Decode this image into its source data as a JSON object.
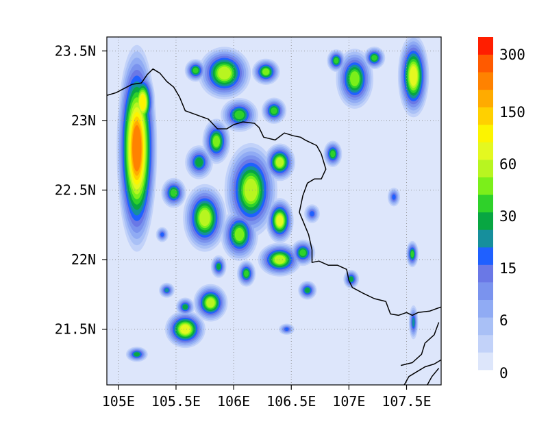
{
  "map": {
    "type": "filled-contour",
    "x_ticks": [
      "105E",
      "105.5E",
      "106E",
      "106.5E",
      "107E",
      "107.5E"
    ],
    "x_tick_values": [
      105.0,
      105.5,
      106.0,
      106.5,
      107.0,
      107.5
    ],
    "y_ticks": [
      "23.5N",
      "23N",
      "22.5N",
      "22N",
      "21.5N"
    ],
    "y_tick_values": [
      23.5,
      23.0,
      22.5,
      22.0,
      21.5
    ],
    "lon_range": [
      104.9,
      107.8
    ],
    "lat_range": [
      21.1,
      23.6
    ],
    "grid": "dotted",
    "background_color": "#dde6fb",
    "colorbar": {
      "orientation": "vertical",
      "placement": "right",
      "labels": [
        "300",
        "150",
        "60",
        "30",
        "15",
        "6",
        "0"
      ],
      "colors": [
        "#dde6fb",
        "#c2d2f9",
        "#a9c0f6",
        "#90abf4",
        "#7a93ee",
        "#6a78e6",
        "#1f60ff",
        "#168f9c",
        "#08a642",
        "#2fd12a",
        "#7bef1a",
        "#b8f520",
        "#e4f820",
        "#fcf400",
        "#ffd000",
        "#ffab00",
        "#ff8200",
        "#ff5a00",
        "#ff1e00"
      ]
    },
    "precip_cells": [
      {
        "lon": 105.16,
        "lat": 22.8,
        "rlon": 0.13,
        "rlat": 0.55,
        "peak": 16
      },
      {
        "lon": 105.21,
        "lat": 23.13,
        "rlon": 0.08,
        "rlat": 0.17,
        "peak": 13
      },
      {
        "lon": 105.92,
        "lat": 23.34,
        "rlon": 0.17,
        "rlat": 0.14,
        "peak": 11
      },
      {
        "lon": 105.67,
        "lat": 23.36,
        "rlon": 0.07,
        "rlat": 0.06,
        "peak": 9
      },
      {
        "lon": 106.28,
        "lat": 23.35,
        "rlon": 0.09,
        "rlat": 0.07,
        "peak": 10
      },
      {
        "lon": 106.35,
        "lat": 23.07,
        "rlon": 0.08,
        "rlat": 0.07,
        "peak": 9
      },
      {
        "lon": 106.05,
        "lat": 23.04,
        "rlon": 0.12,
        "rlat": 0.09,
        "peak": 9
      },
      {
        "lon": 105.85,
        "lat": 22.85,
        "rlon": 0.09,
        "rlat": 0.12,
        "peak": 10
      },
      {
        "lon": 105.7,
        "lat": 22.7,
        "rlon": 0.09,
        "rlat": 0.09,
        "peak": 8
      },
      {
        "lon": 106.4,
        "lat": 22.7,
        "rlon": 0.1,
        "rlat": 0.1,
        "peak": 11
      },
      {
        "lon": 106.15,
        "lat": 22.5,
        "rlon": 0.17,
        "rlat": 0.25,
        "peak": 11
      },
      {
        "lon": 105.48,
        "lat": 22.48,
        "rlon": 0.08,
        "rlat": 0.08,
        "peak": 9
      },
      {
        "lon": 105.75,
        "lat": 22.3,
        "rlon": 0.14,
        "rlat": 0.18,
        "peak": 11
      },
      {
        "lon": 106.05,
        "lat": 22.18,
        "rlon": 0.12,
        "rlat": 0.14,
        "peak": 10
      },
      {
        "lon": 106.4,
        "lat": 22.28,
        "rlon": 0.09,
        "rlat": 0.12,
        "peak": 12
      },
      {
        "lon": 106.4,
        "lat": 22.0,
        "rlon": 0.14,
        "rlat": 0.09,
        "peak": 11
      },
      {
        "lon": 106.6,
        "lat": 22.05,
        "rlon": 0.08,
        "rlat": 0.07,
        "peak": 9
      },
      {
        "lon": 106.11,
        "lat": 21.9,
        "rlon": 0.06,
        "rlat": 0.07,
        "peak": 9
      },
      {
        "lon": 105.87,
        "lat": 21.95,
        "rlon": 0.05,
        "rlat": 0.06,
        "peak": 8
      },
      {
        "lon": 105.8,
        "lat": 21.69,
        "rlon": 0.11,
        "rlat": 0.1,
        "peak": 11
      },
      {
        "lon": 105.58,
        "lat": 21.5,
        "rlon": 0.13,
        "rlat": 0.1,
        "peak": 12
      },
      {
        "lon": 105.58,
        "lat": 21.66,
        "rlon": 0.06,
        "rlat": 0.05,
        "peak": 8
      },
      {
        "lon": 105.16,
        "lat": 21.32,
        "rlon": 0.07,
        "rlat": 0.04,
        "peak": 8
      },
      {
        "lon": 105.42,
        "lat": 21.78,
        "rlon": 0.05,
        "rlat": 0.04,
        "peak": 7
      },
      {
        "lon": 106.64,
        "lat": 21.78,
        "rlon": 0.06,
        "rlat": 0.05,
        "peak": 8
      },
      {
        "lon": 106.89,
        "lat": 23.43,
        "rlon": 0.06,
        "rlat": 0.06,
        "peak": 9
      },
      {
        "lon": 107.05,
        "lat": 23.3,
        "rlon": 0.12,
        "rlat": 0.16,
        "peak": 10
      },
      {
        "lon": 107.22,
        "lat": 23.45,
        "rlon": 0.07,
        "rlat": 0.06,
        "peak": 9
      },
      {
        "lon": 107.56,
        "lat": 23.32,
        "rlon": 0.1,
        "rlat": 0.22,
        "peak": 12
      },
      {
        "lon": 106.86,
        "lat": 22.76,
        "rlon": 0.06,
        "rlat": 0.07,
        "peak": 9
      },
      {
        "lon": 107.55,
        "lat": 22.04,
        "rlon": 0.04,
        "rlat": 0.07,
        "peak": 9
      },
      {
        "lon": 107.02,
        "lat": 21.86,
        "rlon": 0.05,
        "rlat": 0.05,
        "peak": 8
      },
      {
        "lon": 106.46,
        "lat": 21.5,
        "rlon": 0.05,
        "rlat": 0.03,
        "peak": 6
      },
      {
        "lon": 106.68,
        "lat": 22.33,
        "rlon": 0.05,
        "rlat": 0.05,
        "peak": 6
      },
      {
        "lon": 107.39,
        "lat": 22.45,
        "rlon": 0.04,
        "rlat": 0.05,
        "peak": 6
      },
      {
        "lon": 107.56,
        "lat": 21.55,
        "rlon": 0.03,
        "rlat": 0.09,
        "peak": 7
      },
      {
        "lon": 105.38,
        "lat": 22.18,
        "rlon": 0.04,
        "rlat": 0.04,
        "peak": 6
      }
    ],
    "border_main": [
      [
        104.9,
        23.18
      ],
      [
        104.98,
        23.2
      ],
      [
        105.05,
        23.23
      ],
      [
        105.12,
        23.26
      ],
      [
        105.2,
        23.27
      ],
      [
        105.25,
        23.33
      ],
      [
        105.3,
        23.37
      ],
      [
        105.36,
        23.34
      ],
      [
        105.42,
        23.28
      ],
      [
        105.48,
        23.24
      ],
      [
        105.53,
        23.17
      ],
      [
        105.58,
        23.07
      ],
      [
        105.68,
        23.04
      ],
      [
        105.78,
        23.01
      ],
      [
        105.86,
        22.94
      ],
      [
        105.94,
        22.94
      ],
      [
        106.0,
        22.97
      ],
      [
        106.08,
        22.99
      ],
      [
        106.18,
        22.98
      ],
      [
        106.22,
        22.95
      ],
      [
        106.26,
        22.88
      ],
      [
        106.36,
        22.86
      ],
      [
        106.44,
        22.91
      ],
      [
        106.52,
        22.89
      ],
      [
        106.58,
        22.88
      ],
      [
        106.62,
        22.86
      ],
      [
        106.72,
        22.82
      ],
      [
        106.76,
        22.76
      ],
      [
        106.8,
        22.65
      ],
      [
        106.76,
        22.58
      ],
      [
        106.7,
        22.58
      ],
      [
        106.64,
        22.55
      ],
      [
        106.6,
        22.46
      ],
      [
        106.57,
        22.34
      ],
      [
        106.6,
        22.28
      ],
      [
        106.65,
        22.18
      ],
      [
        106.68,
        22.07
      ],
      [
        106.68,
        21.98
      ],
      [
        106.74,
        21.99
      ],
      [
        106.82,
        21.96
      ],
      [
        106.9,
        21.96
      ],
      [
        106.98,
        21.93
      ],
      [
        107.0,
        21.85
      ],
      [
        107.03,
        21.8
      ],
      [
        107.12,
        21.76
      ],
      [
        107.22,
        21.72
      ],
      [
        107.32,
        21.7
      ],
      [
        107.36,
        21.61
      ],
      [
        107.43,
        21.6
      ],
      [
        107.5,
        21.62
      ],
      [
        107.55,
        21.6
      ],
      [
        107.6,
        21.62
      ],
      [
        107.7,
        21.63
      ],
      [
        107.8,
        21.66
      ]
    ],
    "border_coast1": [
      [
        107.78,
        21.55
      ],
      [
        107.74,
        21.46
      ],
      [
        107.66,
        21.4
      ],
      [
        107.63,
        21.32
      ],
      [
        107.55,
        21.26
      ],
      [
        107.45,
        21.24
      ]
    ],
    "border_coast2": [
      [
        107.8,
        21.28
      ],
      [
        107.74,
        21.25
      ],
      [
        107.66,
        21.23
      ],
      [
        107.6,
        21.2
      ],
      [
        107.52,
        21.16
      ],
      [
        107.48,
        21.1
      ]
    ],
    "border_coast3": [
      [
        107.78,
        21.22
      ],
      [
        107.72,
        21.16
      ],
      [
        107.68,
        21.1
      ]
    ]
  }
}
